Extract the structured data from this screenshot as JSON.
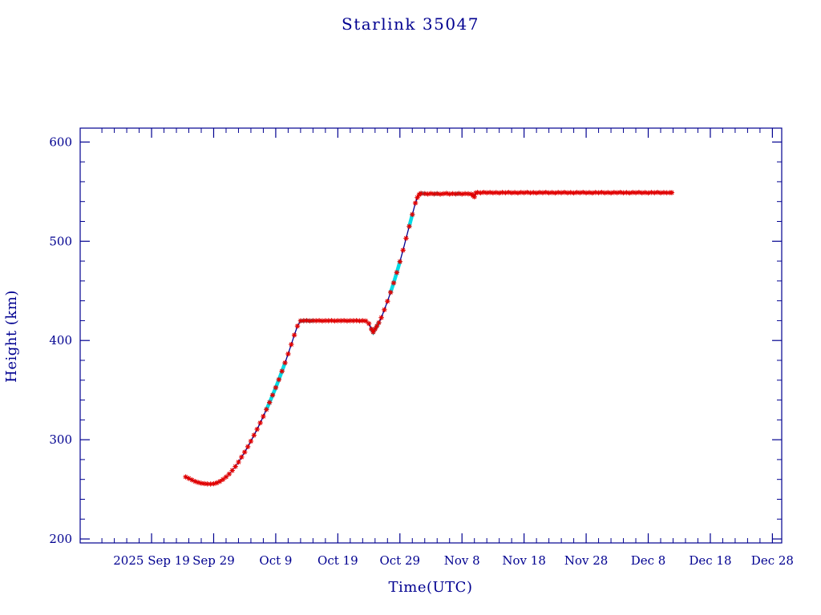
{
  "page": {
    "title": "Starlink 35047"
  },
  "chart_data": {
    "type": "line",
    "title": "Starlink 35047",
    "xlabel": "Time(UTC)",
    "ylabel": "Height (km)",
    "x_unit": "days since 2025 Sep 19",
    "x_axis": {
      "range": [
        -11.5,
        101.5
      ],
      "major_ticks": [
        {
          "pos": 0,
          "label": "2025 Sep 19"
        },
        {
          "pos": 10,
          "label": "Sep 29"
        },
        {
          "pos": 20,
          "label": "Oct 9"
        },
        {
          "pos": 30,
          "label": "Oct 19"
        },
        {
          "pos": 40,
          "label": "Oct 29"
        },
        {
          "pos": 50,
          "label": "Nov 8"
        },
        {
          "pos": 60,
          "label": "Nov 18"
        },
        {
          "pos": 70,
          "label": "Nov 28"
        },
        {
          "pos": 80,
          "label": "Dec 8"
        },
        {
          "pos": 90,
          "label": "Dec 18"
        },
        {
          "pos": 100,
          "label": "Dec 28"
        }
      ],
      "minor_step": 2
    },
    "y_axis": {
      "range": [
        196,
        614
      ],
      "major_ticks": [
        200,
        300,
        400,
        500,
        600
      ],
      "minor_step": 20
    },
    "grid": false,
    "legend": "none",
    "style": {
      "axis_color": "#000090",
      "line_color": "#000090",
      "marker_color": "#e10000",
      "highlight_color": "#00dce6",
      "marker": "asterisk"
    },
    "points": [
      [
        5.5,
        262.5
      ],
      [
        6,
        261
      ],
      [
        6.5,
        259.5
      ],
      [
        7,
        258
      ],
      [
        7.5,
        257
      ],
      [
        8,
        256.2
      ],
      [
        8.5,
        255.8
      ],
      [
        9,
        255.5
      ],
      [
        9.5,
        255.4
      ],
      [
        10,
        255.6
      ],
      [
        10.5,
        256.5
      ],
      [
        11,
        258
      ],
      [
        11.5,
        260
      ],
      [
        12,
        262.5
      ],
      [
        12.5,
        265.5
      ],
      [
        13,
        269
      ],
      [
        13.5,
        273
      ],
      [
        14,
        277.5
      ],
      [
        14.5,
        282.5
      ],
      [
        15,
        287.5
      ],
      [
        15.5,
        293
      ],
      [
        16,
        298.5
      ],
      [
        16.5,
        304.5
      ],
      [
        17,
        310.5
      ],
      [
        17.5,
        317
      ],
      [
        18,
        323.5
      ],
      [
        18.5,
        330.5
      ],
      [
        19,
        337.5
      ],
      [
        19.5,
        345
      ],
      [
        20,
        352.5
      ],
      [
        20.5,
        360.5
      ],
      [
        21,
        369
      ],
      [
        21.5,
        377.5
      ],
      [
        22,
        386.5
      ],
      [
        22.5,
        396
      ],
      [
        23,
        405.5
      ],
      [
        23.5,
        414.5
      ],
      [
        24,
        419.8
      ],
      [
        24.5,
        419.9
      ],
      [
        25,
        420.1
      ],
      [
        25.5,
        419.8
      ],
      [
        26,
        420
      ],
      [
        26.5,
        419.9
      ],
      [
        27,
        420.1
      ],
      [
        27.5,
        419.8
      ],
      [
        28,
        420
      ],
      [
        28.5,
        419.9
      ],
      [
        29,
        420.1
      ],
      [
        29.5,
        419.8
      ],
      [
        30,
        420
      ],
      [
        30.5,
        419.9
      ],
      [
        31,
        420.1
      ],
      [
        31.5,
        419.8
      ],
      [
        32,
        420
      ],
      [
        32.5,
        419.9
      ],
      [
        33,
        420.1
      ],
      [
        33.5,
        419.8
      ],
      [
        34,
        420
      ],
      [
        34.5,
        419.7
      ],
      [
        35,
        417
      ],
      [
        35.4,
        411.5
      ],
      [
        35.7,
        408.5
      ],
      [
        36,
        411.5
      ],
      [
        36.3,
        414.5
      ],
      [
        36.6,
        418
      ],
      [
        37,
        423
      ],
      [
        37.5,
        431
      ],
      [
        38,
        439.5
      ],
      [
        38.5,
        448.5
      ],
      [
        39,
        458
      ],
      [
        39.5,
        468.5
      ],
      [
        40,
        479.5
      ],
      [
        40.5,
        491
      ],
      [
        41,
        503
      ],
      [
        41.5,
        515
      ],
      [
        42,
        527
      ],
      [
        42.5,
        538.5
      ],
      [
        42.8,
        544
      ],
      [
        43.1,
        547
      ],
      [
        43.4,
        548.2
      ],
      [
        44,
        548
      ],
      [
        44.5,
        547.6
      ],
      [
        45,
        548.1
      ],
      [
        45.5,
        547.7
      ],
      [
        46,
        548
      ],
      [
        46.5,
        547.5
      ],
      [
        47,
        547.9
      ],
      [
        47.5,
        548.2
      ],
      [
        48,
        547.6
      ],
      [
        48.5,
        548
      ],
      [
        49,
        547.7
      ],
      [
        49.5,
        548.1
      ],
      [
        50,
        547.6
      ],
      [
        50.5,
        548
      ],
      [
        51,
        547.8
      ],
      [
        51.5,
        547.5
      ],
      [
        51.8,
        546
      ],
      [
        52,
        544.8
      ],
      [
        52.2,
        548.6
      ],
      [
        52.5,
        549.2
      ],
      [
        53,
        548.8
      ],
      [
        53.5,
        549.3
      ],
      [
        54,
        548.9
      ],
      [
        54.5,
        549.2
      ],
      [
        55,
        548.8
      ],
      [
        55.5,
        549.1
      ],
      [
        56,
        548.7
      ],
      [
        56.5,
        549.2
      ],
      [
        57,
        548.9
      ],
      [
        57.5,
        549.3
      ],
      [
        58,
        548.8
      ],
      [
        58.5,
        549.1
      ],
      [
        59,
        548.7
      ],
      [
        59.5,
        549.2
      ],
      [
        60,
        548.9
      ],
      [
        60.5,
        549.3
      ],
      [
        61,
        548.8
      ],
      [
        61.5,
        549.1
      ],
      [
        62,
        548.7
      ],
      [
        62.5,
        549.2
      ],
      [
        63,
        548.9
      ],
      [
        63.5,
        549.3
      ],
      [
        64,
        548.8
      ],
      [
        64.5,
        549.1
      ],
      [
        65,
        548.7
      ],
      [
        65.5,
        549.2
      ],
      [
        66,
        548.9
      ],
      [
        66.5,
        549.3
      ],
      [
        67,
        548.8
      ],
      [
        67.5,
        549.1
      ],
      [
        68,
        548.7
      ],
      [
        68.5,
        549.2
      ],
      [
        69,
        548.9
      ],
      [
        69.5,
        549.3
      ],
      [
        70,
        548.8
      ],
      [
        70.5,
        549.1
      ],
      [
        71,
        548.7
      ],
      [
        71.5,
        549.2
      ],
      [
        72,
        548.9
      ],
      [
        72.5,
        549.3
      ],
      [
        73,
        548.8
      ],
      [
        73.5,
        549.1
      ],
      [
        74,
        548.7
      ],
      [
        74.5,
        549.2
      ],
      [
        75,
        548.9
      ],
      [
        75.5,
        549.3
      ],
      [
        76,
        548.8
      ],
      [
        76.5,
        549.1
      ],
      [
        77,
        548.7
      ],
      [
        77.5,
        549.2
      ],
      [
        78,
        548.9
      ],
      [
        78.5,
        549.3
      ],
      [
        79,
        548.8
      ],
      [
        79.5,
        549.1
      ],
      [
        80,
        548.7
      ],
      [
        80.5,
        549.2
      ],
      [
        81,
        548.9
      ],
      [
        81.5,
        549.3
      ],
      [
        82,
        548.8
      ],
      [
        82.5,
        549.1
      ],
      [
        83,
        548.9
      ],
      [
        83.5,
        549
      ],
      [
        83.8,
        549
      ]
    ],
    "highlight_segments_days": [
      [
        18.3,
        21.6
      ],
      [
        23.9,
        26.3
      ],
      [
        35.2,
        36.6
      ],
      [
        38.2,
        40.3
      ],
      [
        41.2,
        42.4
      ],
      [
        43.4,
        44.2
      ],
      [
        45.3,
        46.2
      ],
      [
        48.8,
        49.6
      ],
      [
        54.8,
        55.4
      ],
      [
        60.8,
        61.4
      ],
      [
        66.3,
        66.9
      ],
      [
        71.8,
        72.4
      ],
      [
        77.8,
        78.4
      ]
    ]
  }
}
